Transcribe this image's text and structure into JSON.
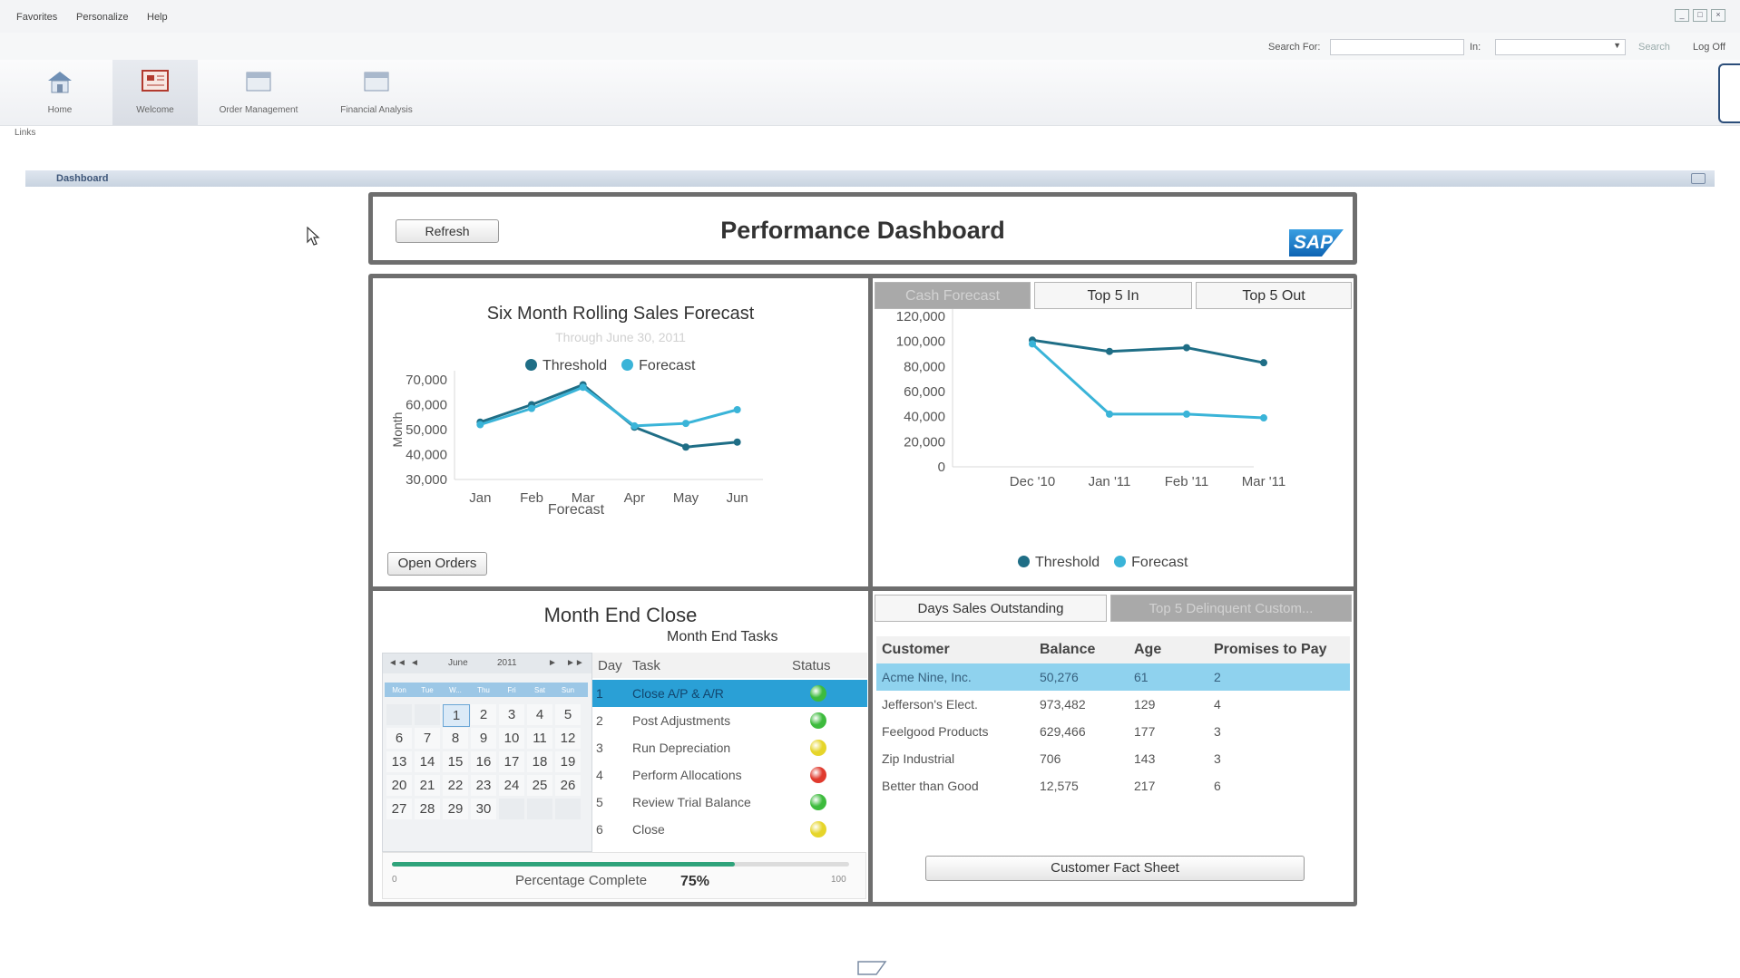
{
  "menu": {
    "favorites": "Favorites",
    "personalize": "Personalize",
    "help": "Help"
  },
  "search": {
    "search_for_label": "Search For:",
    "in_label": "In:",
    "search_button": "Search",
    "logoff": "Log Off"
  },
  "nav": {
    "home": "Home",
    "welcome": "Welcome",
    "order_management": "Order Management",
    "financial_analysis": "Financial Analysis"
  },
  "links_label": "Links",
  "dashboard_tab": "Dashboard",
  "header": {
    "refresh": "Refresh",
    "title": "Performance Dashboard",
    "logo": "SAP"
  },
  "sales": {
    "title": "Six Month Rolling Sales Forecast",
    "subtitle": "Through June 30, 2011",
    "open_orders": "Open Orders",
    "chart_data": {
      "type": "line",
      "title": "Six Month Rolling Sales Forecast",
      "subtitle": "Through June 30, 2011",
      "xlabel": "Forecast",
      "ylabel": "Month",
      "categories": [
        "Jan",
        "Feb",
        "Mar",
        "Apr",
        "May",
        "Jun"
      ],
      "yticks": [
        "30,000",
        "40,000",
        "50,000",
        "60,000",
        "70,000"
      ],
      "ylim": [
        30000,
        70000
      ],
      "legend": "top",
      "series": [
        {
          "name": "Threshold",
          "color": "#1f6e86",
          "values": [
            53000,
            60000,
            68000,
            51000,
            43000,
            45000
          ]
        },
        {
          "name": "Forecast",
          "color": "#3ab4d8",
          "values": [
            52000,
            58500,
            67000,
            51500,
            52500,
            58000
          ]
        }
      ]
    }
  },
  "cash": {
    "tabs": [
      "Cash Forecast",
      "Top 5 In",
      "Top 5 Out"
    ],
    "chart_data": {
      "type": "line",
      "categories": [
        "Dec '10",
        "Jan '11",
        "Feb '11",
        "Mar '11"
      ],
      "yticks": [
        "0",
        "20,000",
        "40,000",
        "60,000",
        "80,000",
        "100,000",
        "120,000"
      ],
      "ylim": [
        0,
        120000
      ],
      "legend": "bottom",
      "series": [
        {
          "name": "Threshold",
          "color": "#1f6e86",
          "values": [
            101000,
            92000,
            95000,
            83000
          ]
        },
        {
          "name": "Forecast",
          "color": "#3ab4d8",
          "values": [
            98000,
            42000,
            42000,
            39000
          ]
        }
      ]
    }
  },
  "month_end": {
    "title": "Month End Close",
    "tasks_title": "Month End Tasks",
    "calendar": {
      "month": "June",
      "year": "2011",
      "weekdays": [
        "Mon",
        "Tue",
        "W...",
        "Thu",
        "Fri",
        "Sat",
        "Sun"
      ],
      "weeks": [
        [
          "",
          "",
          "1",
          "2",
          "3",
          "4",
          "5"
        ],
        [
          "6",
          "7",
          "8",
          "9",
          "10",
          "11",
          "12"
        ],
        [
          "13",
          "14",
          "15",
          "16",
          "17",
          "18",
          "19"
        ],
        [
          "20",
          "21",
          "22",
          "23",
          "24",
          "25",
          "26"
        ],
        [
          "27",
          "28",
          "29",
          "30",
          "",
          "",
          ""
        ]
      ],
      "selected": "1"
    },
    "columns": {
      "day": "Day",
      "task": "Task",
      "status": "Status"
    },
    "tasks": [
      {
        "day": "1",
        "task": "Close A/P & A/R",
        "status": "green"
      },
      {
        "day": "2",
        "task": "Post Adjustments",
        "status": "green"
      },
      {
        "day": "3",
        "task": "Run Depreciation",
        "status": "yellow"
      },
      {
        "day": "4",
        "task": "Perform Allocations",
        "status": "red"
      },
      {
        "day": "5",
        "task": "Review Trial Balance",
        "status": "green"
      },
      {
        "day": "6",
        "task": "Close",
        "status": "yellow"
      }
    ],
    "progress": {
      "label": "Percentage Complete",
      "value_text": "75%",
      "value": 75,
      "min_label": "0",
      "max_label": "100"
    }
  },
  "customers": {
    "tabs": [
      "Days Sales Outstanding",
      "Top 5 Delinquent Custom..."
    ],
    "columns": {
      "customer": "Customer",
      "balance": "Balance",
      "age": "Age",
      "promises": "Promises to Pay"
    },
    "rows": [
      {
        "customer": "Acme Nine, Inc.",
        "balance": "50,276",
        "age": "61",
        "promises": "2"
      },
      {
        "customer": "Jefferson's Elect.",
        "balance": "973,482",
        "age": "129",
        "promises": "4"
      },
      {
        "customer": "Feelgood Products",
        "balance": "629,466",
        "age": "177",
        "promises": "3"
      },
      {
        "customer": "Zip Industrial",
        "balance": "706",
        "age": "143",
        "promises": "3"
      },
      {
        "customer": "Better than Good",
        "balance": "12,575",
        "age": "217",
        "promises": "6"
      }
    ],
    "fact_sheet": "Customer Fact Sheet"
  },
  "status_colors": {
    "green": "#3dbb3d",
    "yellow": "#e6d52a",
    "red": "#e03a2e"
  }
}
